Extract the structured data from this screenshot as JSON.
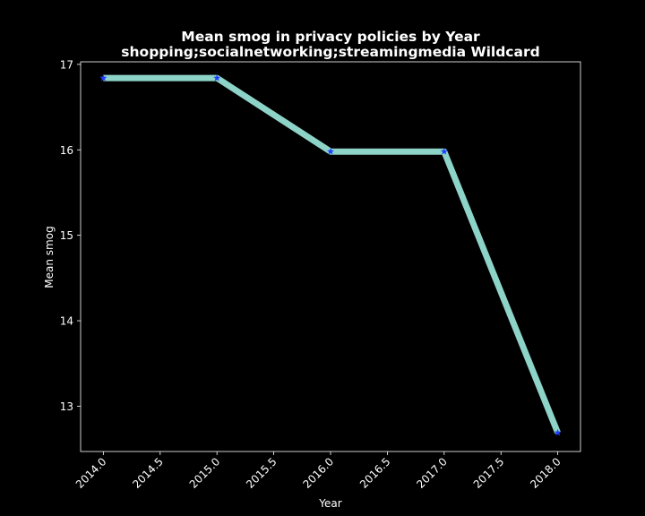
{
  "chart_data": {
    "type": "line",
    "title": "Mean smog in privacy policies by Year",
    "subtitle": "shopping;socialnetworking;streamingmedia Wildcard",
    "xlabel": "Year",
    "ylabel": "Mean smog",
    "xlim": [
      2013.8,
      2018.2
    ],
    "ylim": [
      12.47,
      17.03
    ],
    "x_ticks": [
      2014.0,
      2014.5,
      2015.0,
      2015.5,
      2016.0,
      2016.5,
      2017.0,
      2017.5,
      2018.0
    ],
    "x_tick_labels": [
      "2014.0",
      "2014.5",
      "2015.0",
      "2015.5",
      "2016.0",
      "2016.5",
      "2017.0",
      "2017.5",
      "2018.0"
    ],
    "y_ticks": [
      13,
      14,
      15,
      16,
      17
    ],
    "y_tick_labels": [
      "13",
      "14",
      "15",
      "16",
      "17"
    ],
    "grid": false,
    "series": [
      {
        "x": [
          2014,
          2015,
          2016,
          2017,
          2018
        ],
        "values": [
          16.84,
          16.84,
          15.98,
          15.98,
          12.69
        ],
        "line_color": "#8dd3c7",
        "marker": "star",
        "marker_color": "#1f3dff"
      }
    ],
    "background_color": "#000000",
    "axis_color": "#ffffff"
  }
}
